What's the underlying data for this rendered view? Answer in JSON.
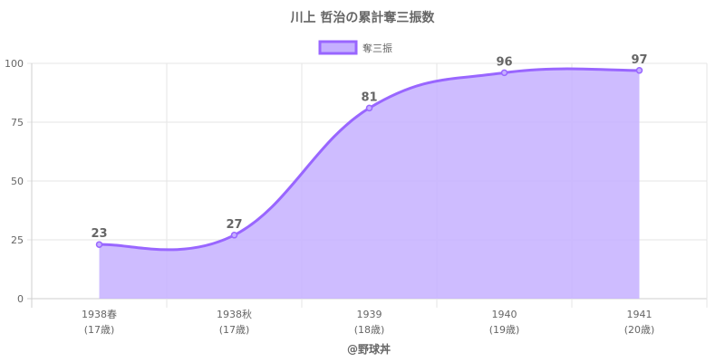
{
  "chart_data": {
    "type": "area",
    "title": "川上 哲治の累計奪三振数",
    "categories": [
      {
        "label": "1938春",
        "sub": "(17歳)"
      },
      {
        "label": "1938秋",
        "sub": "(17歳)"
      },
      {
        "label": "1939",
        "sub": "(18歳)"
      },
      {
        "label": "1940",
        "sub": "(19歳)"
      },
      {
        "label": "1941",
        "sub": "(20歳)"
      }
    ],
    "series": [
      {
        "name": "奪三振",
        "values": [
          23,
          27,
          81,
          96,
          97
        ]
      }
    ],
    "y_ticks": [
      0,
      25,
      50,
      75,
      100
    ],
    "ylim": [
      0,
      100
    ],
    "legend_position": "top",
    "grid": true,
    "colors": {
      "line": "#9966ff",
      "fill": "#c5b0ff",
      "grid": "#e6e6e6",
      "text": "#666666"
    },
    "credit": "@野球丼"
  }
}
